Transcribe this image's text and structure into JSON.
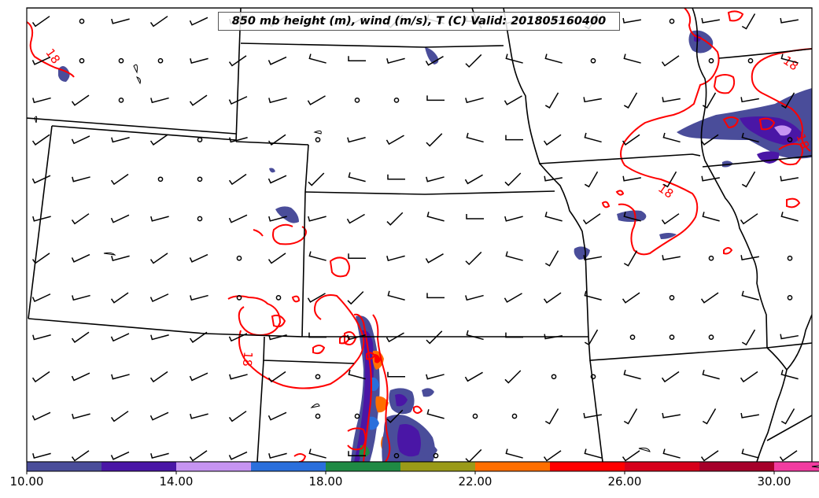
{
  "title": "850 mb height (m), wind (m/s), T (C) Valid: 201805160400",
  "contour_labels": [
    "18",
    "18",
    "18",
    "18",
    "18"
  ],
  "colorbar": {
    "tick_labels": [
      "10.00",
      "14.00",
      "18.00",
      "22.00",
      "26.00",
      "30.00"
    ],
    "colors": [
      "#4a4d9a",
      "#4a16a6",
      "#c694f2",
      "#2a6fdc",
      "#1f8a44",
      "#9a9a18",
      "#ff6e00",
      "#ff0000",
      "#d6001a",
      "#a6002a",
      "#f23ca0"
    ],
    "extend_color": "#f7a6d6"
  },
  "colors": {
    "contour": "#ff0000",
    "boundary": "#000000",
    "precip_base": "#4a4d9a",
    "precip_mid": "#4a16a6"
  }
}
